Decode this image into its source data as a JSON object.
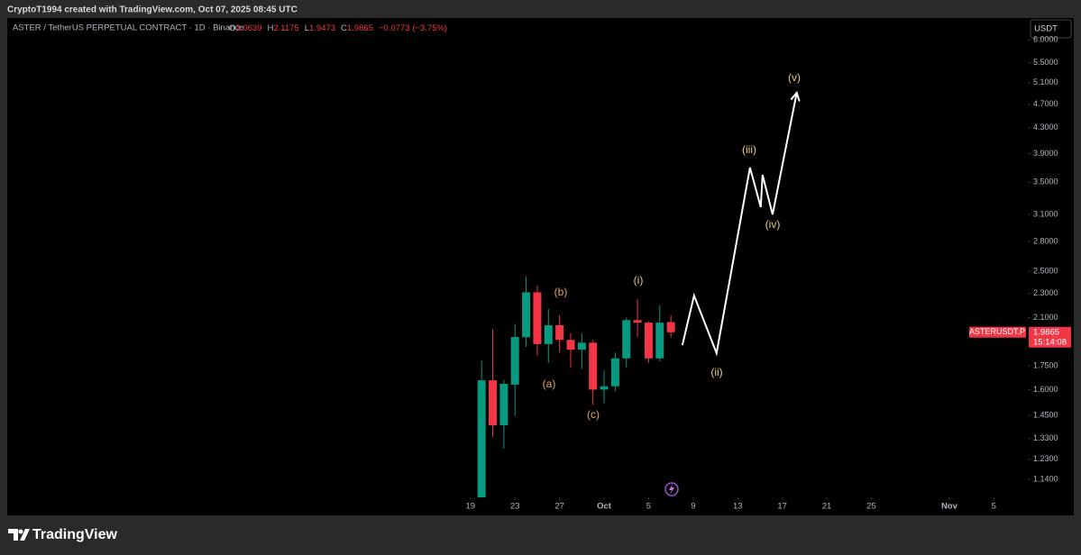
{
  "attribution": "CryptoT1994 created with TradingView.com, Oct 07, 2025 08:45 UTC",
  "logo": "TradingView",
  "chart_data": {
    "type": "candlestick",
    "title": "ASTER / TetherUS PERPETUAL CONTRACT · 1D · Binance",
    "ohlc_letters": [
      "O",
      "H",
      "L",
      "C"
    ],
    "change": "−0.0773 (−3.75%)",
    "currency": "USDT",
    "symbol_tag": "ASTERUSDT.P",
    "countdown": "15:14:08",
    "log_scale": true,
    "up_color": "#089981",
    "down_color": "#f23645",
    "x": [
      1,
      2,
      3,
      4,
      5,
      6,
      7,
      8,
      9,
      10,
      11,
      12,
      13,
      14,
      15,
      16,
      17,
      18
    ],
    "open": [
      1.02,
      1.657,
      1.398,
      1.63,
      1.95,
      2.31,
      1.9,
      2.04,
      1.93,
      1.86,
      1.91,
      1.6,
      1.62,
      1.8,
      2.08,
      2.06,
      1.8,
      2.0639
    ],
    "high": [
      1.786,
      2.012,
      1.66,
      2.05,
      2.45,
      2.37,
      2.17,
      2.12,
      1.98,
      1.98,
      1.93,
      1.72,
      1.84,
      2.1,
      2.25,
      2.07,
      2.2,
      2.1175
    ],
    "low": [
      1.0,
      1.338,
      1.28,
      1.45,
      1.88,
      1.82,
      1.77,
      1.84,
      1.74,
      1.73,
      1.51,
      1.52,
      1.59,
      1.74,
      1.95,
      1.77,
      1.78,
      1.9473
    ],
    "close": [
      1.657,
      1.398,
      1.635,
      1.951,
      2.31,
      1.9,
      2.04,
      1.93,
      1.86,
      1.91,
      1.6,
      1.62,
      1.8,
      2.08,
      2.06,
      1.8,
      2.06,
      1.9865
    ],
    "xlim": [
      -41.6,
      50.05
    ],
    "ylim": [
      1.065,
      6.51
    ],
    "xticks": [
      {
        "value": 0,
        "label": "19"
      },
      {
        "value": 4,
        "label": "23"
      },
      {
        "value": 8,
        "label": "27"
      },
      {
        "value": 12,
        "label": "Oct"
      },
      {
        "value": 16,
        "label": "5"
      },
      {
        "value": 20,
        "label": "9"
      },
      {
        "value": 24,
        "label": "13"
      },
      {
        "value": 28,
        "label": "17"
      },
      {
        "value": 32,
        "label": "21"
      },
      {
        "value": 36,
        "label": "25"
      },
      {
        "value": 43,
        "label": "Nov"
      },
      {
        "value": 47,
        "label": "5"
      }
    ],
    "yticks": [
      {
        "value": 6,
        "label": "6.0000"
      },
      {
        "value": 5.5,
        "label": "5.5000"
      },
      {
        "value": 5.1,
        "label": "5.1000"
      },
      {
        "value": 4.7,
        "label": "4.7000"
      },
      {
        "value": 4.3,
        "label": "4.3000"
      },
      {
        "value": 3.9,
        "label": "3.9000"
      },
      {
        "value": 3.5,
        "label": "3.5000"
      },
      {
        "value": 3.1,
        "label": "3.1000"
      },
      {
        "value": 2.8,
        "label": "2.8000"
      },
      {
        "value": 2.5,
        "label": "2.5000"
      },
      {
        "value": 2.3,
        "label": "2.3000"
      },
      {
        "value": 2.1,
        "label": "2.1000"
      },
      {
        "value": 1.75,
        "label": "1.7500"
      },
      {
        "value": 1.6,
        "label": "1.6000"
      },
      {
        "value": 1.45,
        "label": "1.4500"
      },
      {
        "value": 1.33,
        "label": "1.3300"
      },
      {
        "value": 1.23,
        "label": "1.2300"
      },
      {
        "value": 1.14,
        "label": "1.1400"
      }
    ],
    "wave_path": {
      "color": "#ffffff",
      "x": [
        19.03,
        20.08,
        22.1,
        25.1,
        26.07,
        26.23,
        27.13,
        29.3
      ],
      "y": [
        1.893,
        2.282,
        1.836,
        3.7,
        3.186,
        3.6,
        3.1,
        4.91
      ]
    },
    "annotations": [
      {
        "text": "(a)",
        "color": "#e8a15a"
      },
      {
        "text": "(b)",
        "color": "#e8a15a"
      },
      {
        "text": "(c)",
        "color": "#e8a15a"
      },
      {
        "text": "(i)",
        "color": "#e6d27a"
      },
      {
        "text": "(ii)",
        "color": "#e6d27a"
      },
      {
        "text": "(iii)",
        "color": "#e6d27a"
      },
      {
        "text": "(iv)",
        "color": "#e6d27a"
      },
      {
        "text": "(v)",
        "color": "#e6d27a"
      }
    ]
  }
}
